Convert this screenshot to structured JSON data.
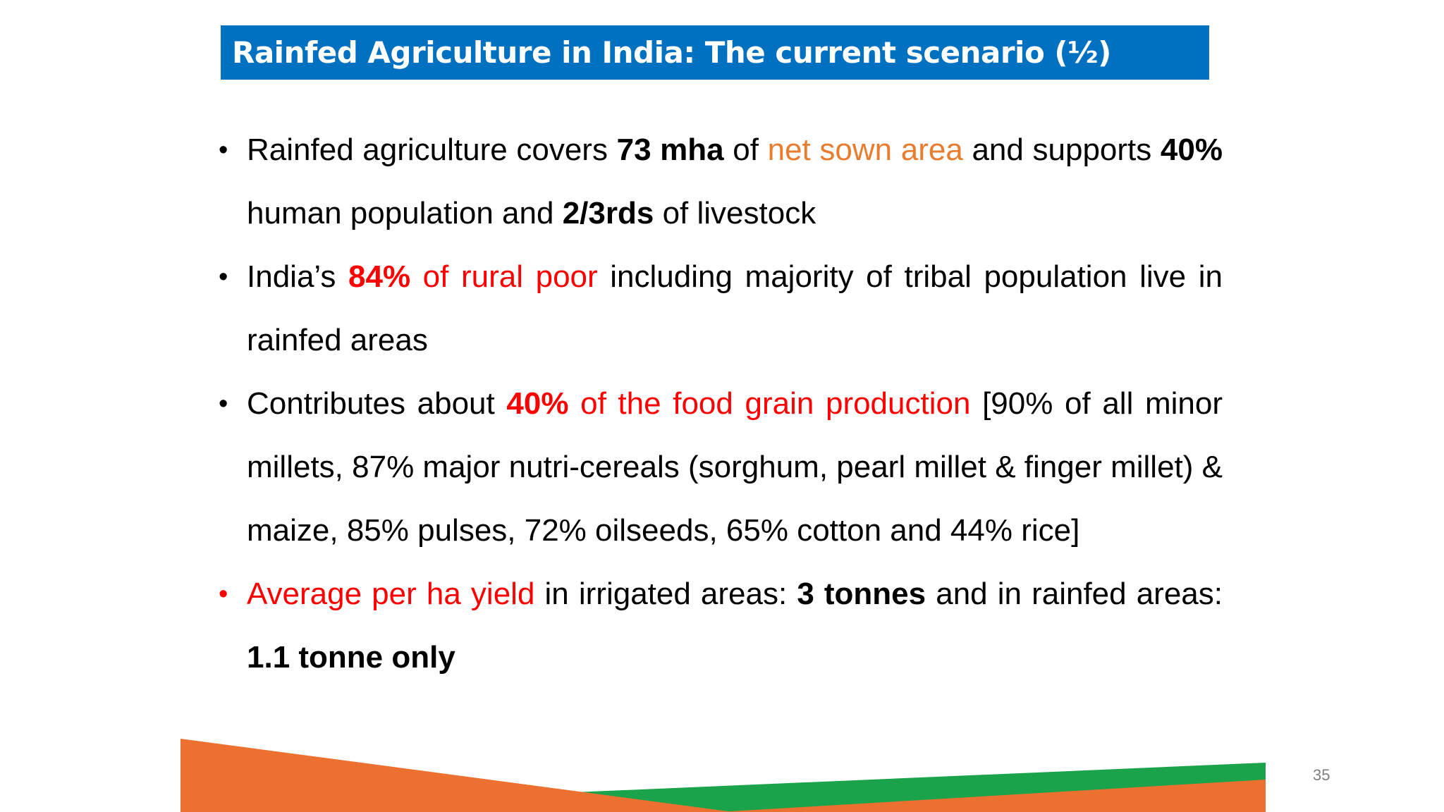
{
  "slide": {
    "title": "Rainfed Agriculture in India: The current scenario (½)",
    "page_number": "35",
    "bullet_glyph": "•"
  },
  "colors": {
    "title_bar": "#0070c0",
    "highlight_orange": "#e87d2f",
    "highlight_red": "#ff0000",
    "footer_orange": "#ec7030",
    "footer_green": "#1aa34a"
  },
  "bullets": [
    {
      "parts": [
        "Rainfed agriculture covers ",
        "73 mha",
        " of ",
        "net sown area",
        " and supports ",
        "40%",
        " human population and ",
        "2/3rds",
        " of livestock"
      ]
    },
    {
      "parts": [
        "India’s ",
        "84%",
        " of rural poor",
        " including majority of tribal population live in rainfed areas"
      ]
    },
    {
      "parts": [
        "Contributes about ",
        "40%",
        " of the food grain production",
        " [90%  of all minor millets, 87% major nutri-cereals (sorghum, pearl millet & finger millet) & maize,  85% pulses, 72% oilseeds, 65% cotton and 44% rice]"
      ]
    },
    {
      "parts": [
        "Average per ha yield",
        " in irrigated areas: ",
        "3 tonnes",
        " and in rainfed areas: ",
        "1.1 tonne only"
      ]
    }
  ]
}
